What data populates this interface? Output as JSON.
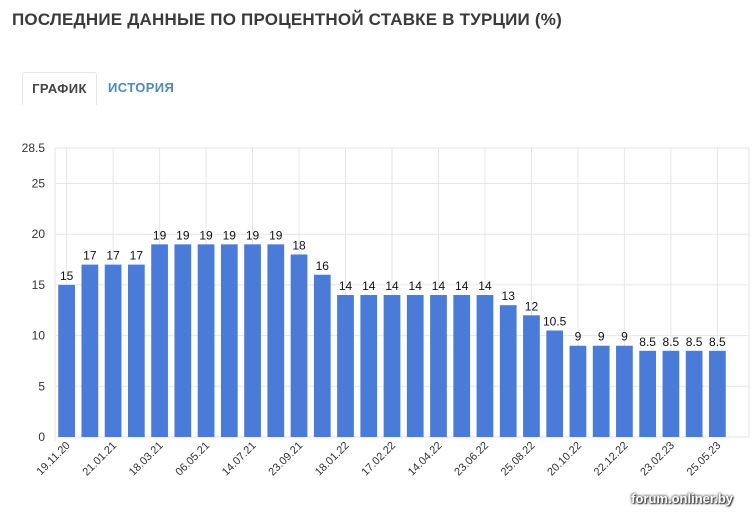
{
  "title": "ПОСЛЕДНИЕ ДАННЫЕ ПО ПРОЦЕНТНОЙ СТАВКЕ В ТУРЦИИ (%)",
  "tabs": [
    {
      "label": "ГРАФИК",
      "active": true
    },
    {
      "label": "ИСТОРИЯ",
      "active": false
    }
  ],
  "watermark": "forum.onliner.by",
  "colors": {
    "bar": "#4a7bd8",
    "grid": "#e6e6e6",
    "tab_inactive": "#4d8ab8"
  },
  "chart_data": {
    "type": "bar",
    "title": "",
    "xlabel": "",
    "ylabel": "",
    "ylim": [
      0,
      28.5
    ],
    "yticks": [
      "0",
      "5",
      "10",
      "15",
      "20",
      "25",
      "28.5"
    ],
    "grid": true,
    "values": [
      15,
      17,
      17,
      17,
      19,
      19,
      19,
      19,
      19,
      19,
      18,
      16,
      14,
      14,
      14,
      14,
      14,
      14,
      14,
      13,
      12,
      10.5,
      9,
      9,
      9,
      8.5,
      8.5,
      8.5,
      8.5
    ],
    "value_labels": [
      "15",
      "17",
      "17",
      "17",
      "19",
      "19",
      "19",
      "19",
      "19",
      "19",
      "18",
      "16",
      "14",
      "14",
      "14",
      "14",
      "14",
      "14",
      "14",
      "13",
      "12",
      "10.5",
      "9",
      "9",
      "9",
      "8.5",
      "8.5",
      "8.5",
      "8.5"
    ],
    "x_tick_labels": [
      {
        "bar": 0,
        "label": "19.11.20"
      },
      {
        "bar": 2,
        "label": "21.01.21"
      },
      {
        "bar": 4,
        "label": "18.03.21"
      },
      {
        "bar": 6,
        "label": "06.05.21"
      },
      {
        "bar": 8,
        "label": "14.07.21"
      },
      {
        "bar": 10,
        "label": "23.09.21"
      },
      {
        "bar": 12,
        "label": "18.01.22"
      },
      {
        "bar": 14,
        "label": "17.02.22"
      },
      {
        "bar": 16,
        "label": "14.04.22"
      },
      {
        "bar": 18,
        "label": "23.06.22"
      },
      {
        "bar": 20,
        "label": "25.08.22"
      },
      {
        "bar": 22,
        "label": "20.10.22"
      },
      {
        "bar": 24,
        "label": "22.12.22"
      },
      {
        "bar": 26,
        "label": "23.02.23"
      },
      {
        "bar": 28,
        "label": "25.05.23"
      }
    ]
  }
}
